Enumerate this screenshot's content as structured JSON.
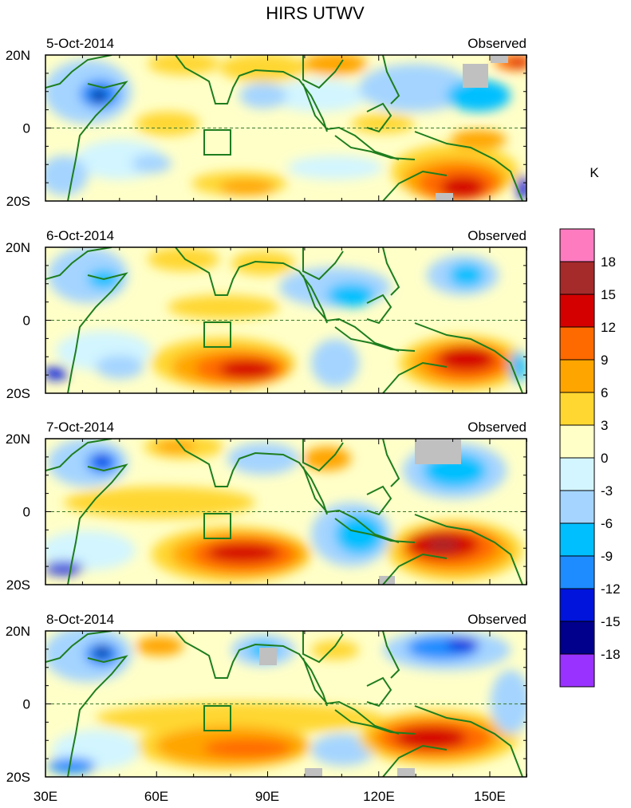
{
  "title": "HIRS UTWV",
  "unit": "K",
  "panels": [
    {
      "date": "5-Oct-2014",
      "label": "Observed"
    },
    {
      "date": "6-Oct-2014",
      "label": "Observed"
    },
    {
      "date": "7-Oct-2014",
      "label": "Observed"
    },
    {
      "date": "8-Oct-2014",
      "label": "Observed"
    }
  ],
  "y_ticks": [
    "20N",
    "0",
    "20S"
  ],
  "x_ticks": [
    "30E",
    "60E",
    "90E",
    "120E",
    "150E"
  ],
  "colorbar": {
    "labels": [
      "18",
      "15",
      "12",
      "9",
      "6",
      "3",
      "0",
      "-3",
      "-6",
      "-9",
      "-12",
      "-15",
      "-18"
    ],
    "colors": [
      "#ff7bc0",
      "#a52a2a",
      "#d40000",
      "#ff6a00",
      "#ffa500",
      "#ffd730",
      "#ffffc8",
      "#d2f5ff",
      "#a4d4ff",
      "#00bfff",
      "#1e8cff",
      "#0014dc",
      "#00008c",
      "#9a32ff"
    ]
  },
  "chart_data": {
    "type": "heatmap",
    "title": "HIRS UTWV",
    "colorbar_unit": "K",
    "colorbar_levels": [
      -18,
      -15,
      -12,
      -9,
      -6,
      -3,
      0,
      3,
      6,
      9,
      12,
      15,
      18
    ],
    "x_range": [
      "30E",
      "160E"
    ],
    "y_range": [
      "20S",
      "20N"
    ],
    "panels": [
      "5-Oct-2014",
      "6-Oct-2014",
      "7-Oct-2014",
      "8-Oct-2014"
    ]
  }
}
